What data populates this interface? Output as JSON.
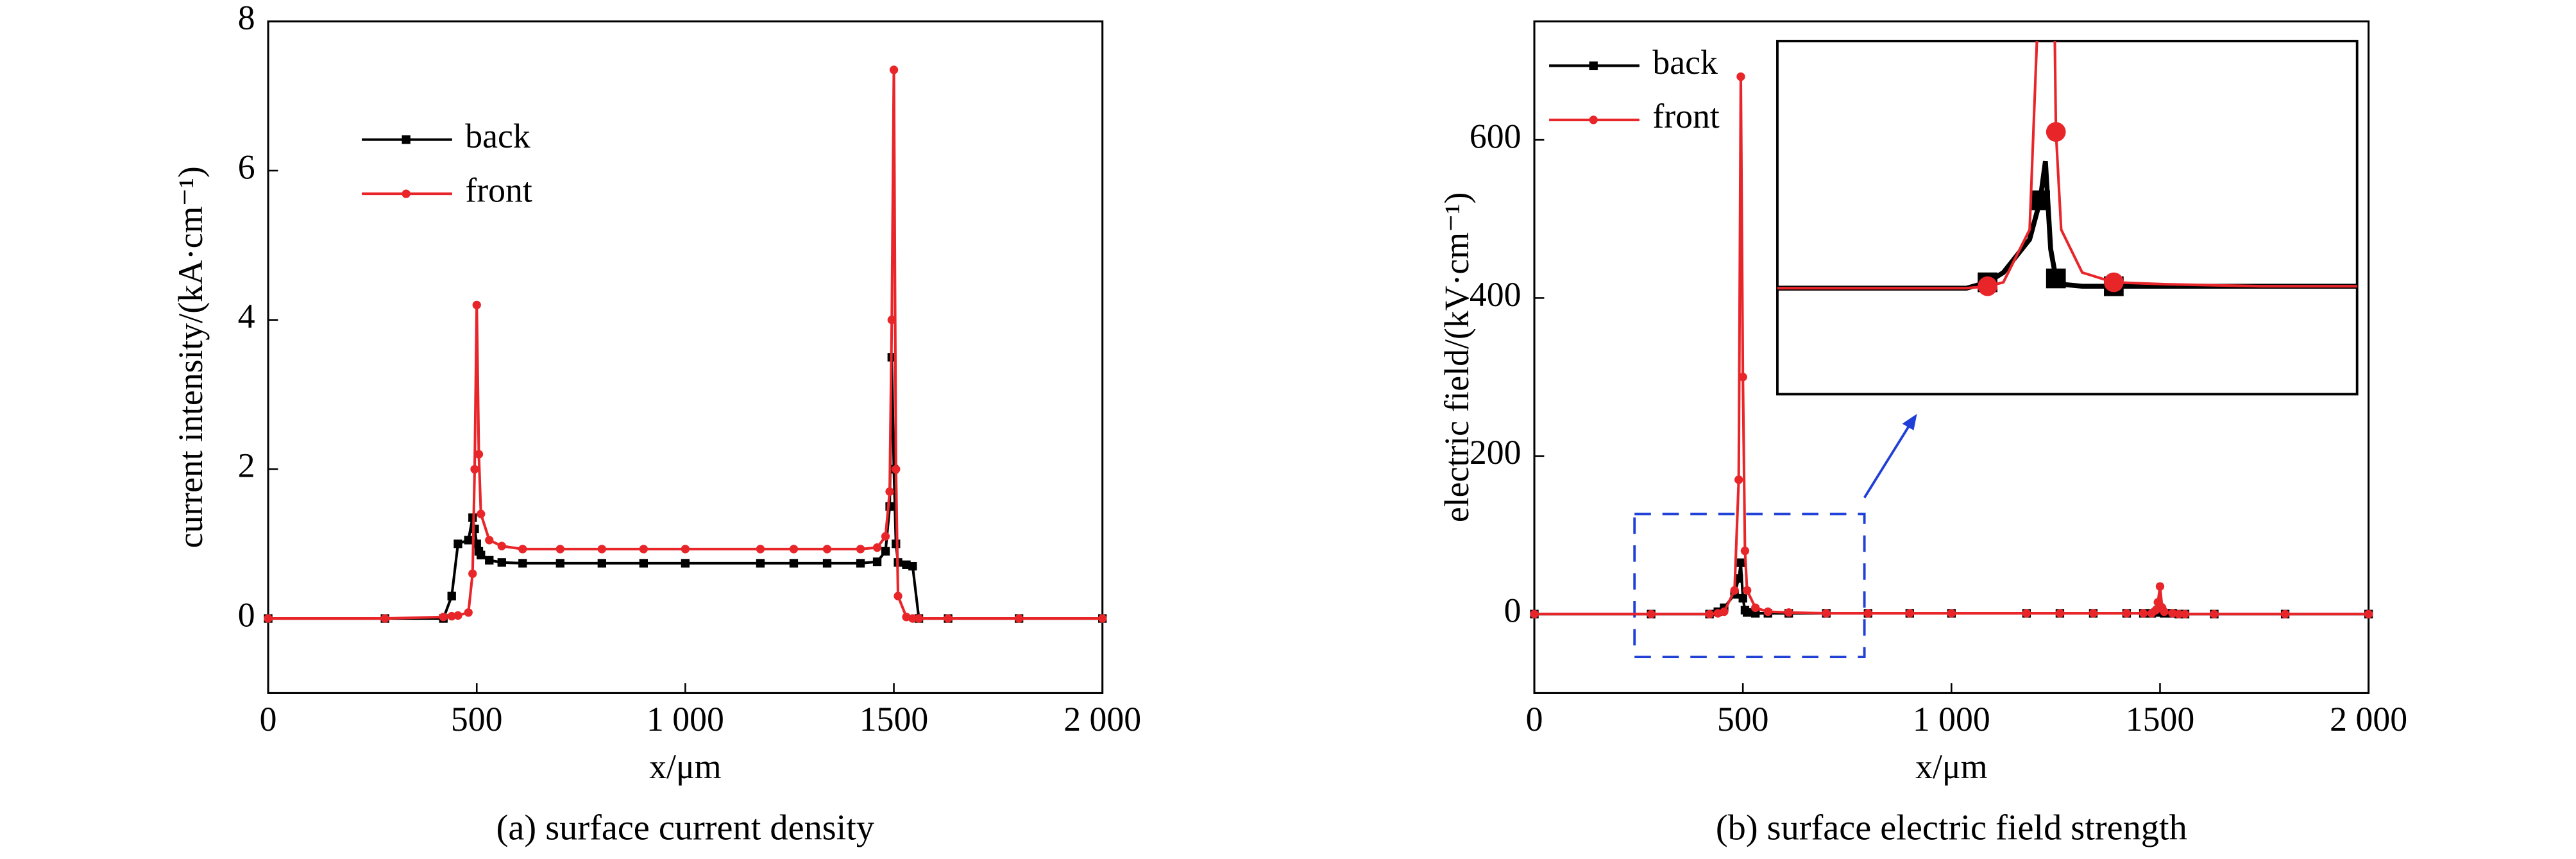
{
  "chart_data": [
    {
      "type": "line",
      "title": "(a) surface current density",
      "xlabel": "x/μm",
      "ylabel": "current intensity/(kA·cm⁻¹)",
      "x": [
        0,
        280,
        420,
        440,
        455,
        480,
        490,
        495,
        500,
        505,
        510,
        530,
        560,
        610,
        700,
        800,
        900,
        1000,
        1180,
        1260,
        1340,
        1420,
        1460,
        1480,
        1490,
        1495,
        1500,
        1505,
        1510,
        1530,
        1545,
        1560,
        1630,
        1800,
        2000
      ],
      "series": [
        {
          "name": "back",
          "color": "#000000",
          "marker": "square",
          "values": [
            0,
            0,
            0,
            0.3,
            1.0,
            1.05,
            1.35,
            1.2,
            1.0,
            0.9,
            0.85,
            0.78,
            0.75,
            0.74,
            0.74,
            0.74,
            0.74,
            0.74,
            0.74,
            0.74,
            0.74,
            0.74,
            0.76,
            0.9,
            1.5,
            3.5,
            2.0,
            1.0,
            0.75,
            0.72,
            0.7,
            0,
            0,
            0,
            0
          ]
        },
        {
          "name": "front",
          "color": "#e8262a",
          "marker": "circle",
          "values": [
            0,
            0,
            0.02,
            0.03,
            0.04,
            0.08,
            0.6,
            2.0,
            4.2,
            2.2,
            1.4,
            1.05,
            0.97,
            0.93,
            0.93,
            0.93,
            0.93,
            0.93,
            0.93,
            0.93,
            0.93,
            0.93,
            0.95,
            1.1,
            1.7,
            4.0,
            7.35,
            2.0,
            0.3,
            0.02,
            0,
            0,
            0,
            0,
            0
          ]
        }
      ],
      "xlim": [
        0,
        2000
      ],
      "ylim": [
        -1,
        8
      ],
      "xticks": [
        0,
        500,
        {
          "value": 1000,
          "label": "1 000"
        },
        1500,
        {
          "value": 2000,
          "label": "2 000"
        }
      ],
      "yticks": [
        0,
        2,
        4,
        6,
        8
      ],
      "legend": "upper left"
    },
    {
      "type": "line",
      "title": "(b) surface electric field strength",
      "xlabel": "x/μm",
      "ylabel": "electric field/(kV·cm⁻¹)",
      "x": [
        0,
        280,
        420,
        440,
        455,
        480,
        490,
        495,
        500,
        505,
        510,
        530,
        560,
        610,
        700,
        800,
        900,
        1000,
        1180,
        1260,
        1340,
        1420,
        1460,
        1480,
        1490,
        1495,
        1500,
        1505,
        1510,
        1530,
        1545,
        1560,
        1630,
        1800,
        2000
      ],
      "series": [
        {
          "name": "back",
          "color": "#000000",
          "marker": "square",
          "values": [
            0,
            0,
            0,
            3,
            8,
            25,
            45,
            65,
            20,
            5,
            2,
            1,
            1,
            1,
            1,
            1,
            1,
            1,
            1,
            1,
            1,
            1,
            1,
            1,
            2,
            5,
            8,
            3,
            1,
            1,
            0,
            0,
            0,
            0,
            0
          ]
        },
        {
          "name": "front",
          "color": "#e8262a",
          "marker": "circle",
          "values": [
            0,
            0,
            0,
            1,
            3,
            30,
            170,
            680,
            300,
            80,
            30,
            8,
            3,
            2,
            1,
            1,
            1,
            1,
            1,
            1,
            1,
            1,
            1,
            1,
            5,
            15,
            35,
            8,
            3,
            1,
            0,
            0,
            0,
            0,
            0
          ]
        }
      ],
      "xlim": [
        0,
        2000
      ],
      "ylim": [
        -100,
        750
      ],
      "xticks": [
        0,
        500,
        {
          "value": 1000,
          "label": "1 000"
        },
        1500,
        {
          "value": 2000,
          "label": "2 000"
        }
      ],
      "yticks": [
        0,
        200,
        400,
        600
      ],
      "legend": "upper left"
    }
  ]
}
